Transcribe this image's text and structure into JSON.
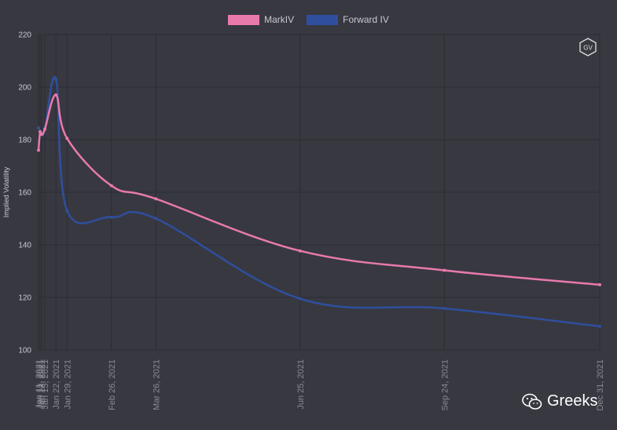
{
  "legend": {
    "mark_label": "MarkIV",
    "forward_label": "Forward IV"
  },
  "logo_text": "GV",
  "watermark_text": "Greeks",
  "colors": {
    "mark": "#e87aab",
    "forward": "#2f4f9e",
    "background": "#383841",
    "grid": "#2c2c33",
    "tick": "#8a8a96"
  },
  "chart_data": {
    "type": "line",
    "title": "",
    "xlabel": "",
    "ylabel": "Implied Volatility",
    "ylim": [
      100,
      220
    ],
    "yticks": [
      100,
      120,
      140,
      160,
      180,
      200,
      220
    ],
    "grid": true,
    "legend_position": "top-center",
    "x_tick_labels": [
      "Jan 11, 2021",
      "Jan 12, 2021",
      "Jan 13, 2021",
      "Jan 15, 2021",
      "Jan 22, 2021",
      "Jan 29, 2021",
      "Feb 26, 2021",
      "Mar 26, 2021",
      "Jun 25, 2021",
      "Sep 24, 2021",
      "Dec 31, 2021"
    ],
    "x": [
      "2021-01-11",
      "2021-01-12",
      "2021-01-13",
      "2021-01-15",
      "2021-01-22",
      "2021-01-29",
      "2021-02-26",
      "2021-03-26",
      "2021-06-25",
      "2021-09-24",
      "2021-12-31"
    ],
    "series": [
      {
        "name": "MarkIV",
        "values": [
          176,
          183,
          182,
          184,
          197,
          180.5,
          162.5,
          157.5,
          137.7,
          130.3,
          124.8
        ]
      },
      {
        "name": "Forward IV",
        "values": [
          184.5,
          183,
          182,
          184,
          203,
          153,
          150.5,
          150,
          119.5,
          115.8,
          109
        ]
      }
    ]
  }
}
